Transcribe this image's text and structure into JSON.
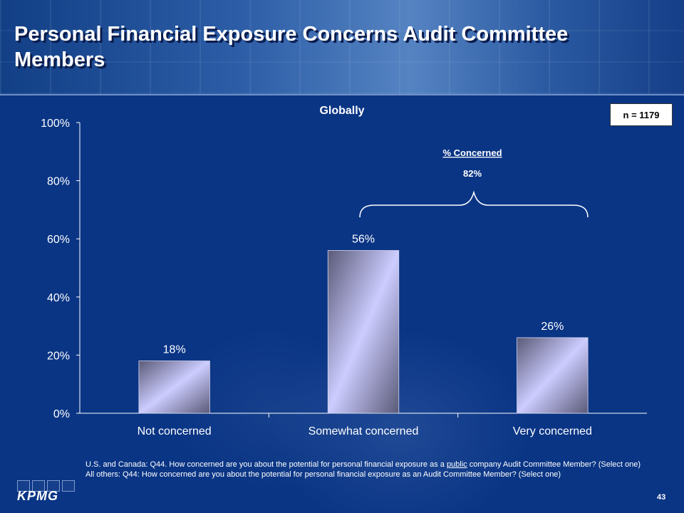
{
  "slide": {
    "title": "Personal Financial Exposure Concerns Audit Committee Members",
    "n_label": "n = 1179",
    "bracket_label": "% Concerned",
    "bracket_value": "82%",
    "footnote": {
      "line1_pre": "U.S. and Canada: Q44. How concerned are you about the potential for personal financial exposure as a ",
      "line1_underlined": "public",
      "line1_post": " company Audit Committee Member? (Select one)",
      "line2": "All others: Q44: How concerned are you about the potential for personal financial exposure as an Audit Committee Member? (Select one)"
    },
    "logo_text": "KPMG",
    "page_number": "43"
  },
  "chart_data": {
    "type": "bar",
    "title": "Globally",
    "categories": [
      "Not concerned",
      "Somewhat concerned",
      "Very concerned"
    ],
    "values": [
      18,
      56,
      26
    ],
    "data_labels": [
      "18%",
      "56%",
      "26%"
    ],
    "ylim": [
      0,
      100
    ],
    "yticks": [
      0,
      20,
      40,
      60,
      80,
      100
    ],
    "ytick_labels": [
      "0%",
      "20%",
      "40%",
      "60%",
      "80%",
      "100%"
    ],
    "grid": false,
    "legend": "none",
    "colors": {
      "bar_light": "#ccccff",
      "bar_dark": "#5a5a78",
      "axis": "#ffffff",
      "text": "#ffffff"
    }
  }
}
